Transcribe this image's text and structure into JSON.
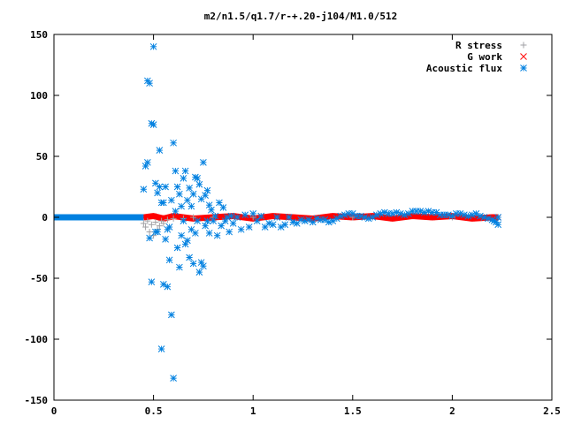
{
  "chart_data": {
    "type": "scatter",
    "title": "m2/n1.5/q1.7/r-+.20-j104/M1.0/512",
    "xlabel": "",
    "ylabel": "",
    "xlim": [
      0,
      2.5
    ],
    "ylim": [
      -150,
      150
    ],
    "x_ticks": [
      0,
      0.5,
      1,
      1.5,
      2,
      2.5
    ],
    "x_tick_labels": [
      "0",
      "0.5",
      "1",
      "1.5",
      "2",
      "2.5"
    ],
    "y_ticks": [
      -150,
      -100,
      -50,
      0,
      50,
      100,
      150
    ],
    "y_tick_labels": [
      "-150",
      "-100",
      "-50",
      "0",
      "50",
      "100",
      "150"
    ],
    "grid": false,
    "legend_position": "top-right",
    "series": [
      {
        "name": "R stress",
        "marker": "plus",
        "color": "#a0a0a4",
        "x": [
          0.45,
          0.46,
          0.47,
          0.48,
          0.49,
          0.5,
          0.51,
          0.52,
          0.53,
          0.54,
          0.55,
          0.57,
          0.6,
          0.65,
          0.7,
          0.8,
          1.0,
          1.5,
          2.0,
          2.23
        ],
        "y": [
          -5,
          -8,
          -3,
          -12,
          -6,
          -15,
          -4,
          -10,
          -7,
          -3,
          -5,
          -2,
          -1,
          -1,
          0,
          0,
          0,
          0,
          0,
          0
        ]
      },
      {
        "name": "G work",
        "marker": "cross",
        "color": "#ff0000",
        "x": [
          0.45,
          0.5,
          0.55,
          0.6,
          0.7,
          0.8,
          0.9,
          1.0,
          1.1,
          1.2,
          1.3,
          1.4,
          1.5,
          1.6,
          1.7,
          1.8,
          1.9,
          2.0,
          2.1,
          2.2,
          2.23
        ],
        "y": [
          0,
          1,
          -1,
          1,
          -1,
          0,
          1,
          -1,
          1,
          0,
          -1,
          1,
          0,
          1,
          -1,
          1,
          0,
          1,
          -1,
          0,
          0
        ],
        "band": 2.5
      },
      {
        "name": "Acoustic flux",
        "marker": "star",
        "color": "#0080e0",
        "baseline_x": [
          0,
          0.45
        ],
        "baseline_y": 0,
        "x": [
          0.45,
          0.46,
          0.47,
          0.47,
          0.48,
          0.48,
          0.49,
          0.49,
          0.5,
          0.5,
          0.51,
          0.51,
          0.52,
          0.52,
          0.53,
          0.53,
          0.54,
          0.54,
          0.55,
          0.55,
          0.56,
          0.56,
          0.57,
          0.57,
          0.58,
          0.58,
          0.59,
          0.59,
          0.6,
          0.6,
          0.61,
          0.61,
          0.62,
          0.62,
          0.63,
          0.63,
          0.64,
          0.64,
          0.65,
          0.65,
          0.66,
          0.66,
          0.67,
          0.67,
          0.68,
          0.68,
          0.69,
          0.69,
          0.7,
          0.7,
          0.71,
          0.71,
          0.72,
          0.72,
          0.73,
          0.73,
          0.74,
          0.74,
          0.75,
          0.75,
          0.76,
          0.76,
          0.77,
          0.77,
          0.78,
          0.78,
          0.79,
          0.8,
          0.81,
          0.82,
          0.83,
          0.84,
          0.85,
          0.86,
          0.87,
          0.88,
          0.89,
          0.9,
          0.92,
          0.94,
          0.96,
          0.98,
          1.0,
          1.02,
          1.04,
          1.06,
          1.08,
          1.1,
          1.12,
          1.14,
          1.16,
          1.18,
          1.2,
          1.22,
          1.24,
          1.26,
          1.28,
          1.3,
          1.32,
          1.34,
          1.36,
          1.38,
          1.4,
          1.42,
          1.44,
          1.46,
          1.48,
          1.5,
          1.52,
          1.54,
          1.56,
          1.58,
          1.6,
          1.62,
          1.64,
          1.66,
          1.68,
          1.7,
          1.72,
          1.74,
          1.76,
          1.78,
          1.8,
          1.82,
          1.84,
          1.86,
          1.88,
          1.9,
          1.92,
          1.94,
          1.96,
          1.98,
          2.0,
          2.02,
          2.04,
          2.06,
          2.08,
          2.1,
          2.12,
          2.14,
          2.16,
          2.18,
          2.2,
          2.21,
          2.22,
          2.23,
          2.23
        ],
        "y": [
          23,
          42,
          112,
          45,
          110,
          -17,
          77,
          -53,
          140,
          76,
          28,
          -12,
          20,
          -12,
          55,
          25,
          -108,
          12,
          12,
          -55,
          -18,
          25,
          -57,
          -10,
          -8,
          -35,
          -80,
          14,
          61,
          -132,
          38,
          5,
          -25,
          25,
          -41,
          19,
          9,
          -15,
          -3,
          32,
          38,
          -22,
          -19,
          14,
          24,
          -33,
          -10,
          9,
          19,
          -38,
          -13,
          33,
          32,
          -3,
          27,
          -45,
          15,
          -37,
          45,
          -40,
          18,
          -7,
          22,
          -3,
          10,
          -13,
          6,
          -3,
          1,
          -15,
          12,
          -7,
          8,
          -3,
          0,
          -12,
          1,
          -5,
          0,
          -10,
          2,
          -8,
          3,
          -3,
          1,
          -8,
          -5,
          -6,
          0,
          -8,
          -6,
          0,
          -4,
          -5,
          -2,
          -3,
          -2,
          -4,
          -1,
          -2,
          -2,
          -4,
          -3,
          -1,
          1,
          2,
          3,
          3,
          1,
          1,
          0,
          -1,
          0,
          2,
          3,
          4,
          3,
          3,
          4,
          3,
          2,
          3,
          5,
          5,
          5,
          4,
          5,
          4,
          4,
          2,
          2,
          2,
          1,
          3,
          3,
          2,
          1,
          2,
          3,
          1,
          0,
          -1,
          -2,
          -3,
          -4,
          -6,
          0
        ]
      }
    ]
  }
}
